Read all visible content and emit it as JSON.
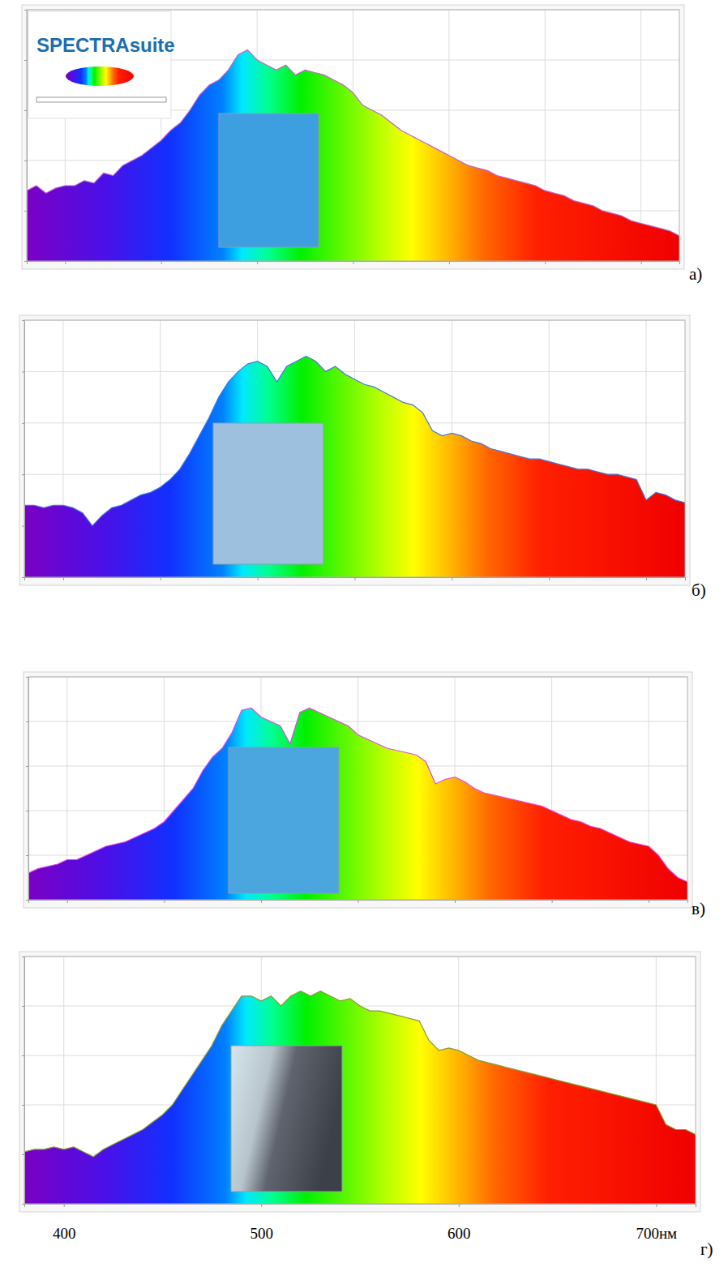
{
  "chart_data": [
    {
      "type": "area",
      "title": "а)",
      "color": "#c266c8",
      "annotations": [
        {
          "text": "SPECTRAsuite"
        }
      ],
      "x": [
        380,
        385,
        390,
        395,
        400,
        405,
        410,
        415,
        420,
        425,
        430,
        435,
        440,
        445,
        450,
        455,
        460,
        465,
        470,
        475,
        480,
        485,
        490,
        495,
        500,
        505,
        510,
        515,
        520,
        525,
        530,
        535,
        540,
        545,
        550,
        555,
        560,
        565,
        570,
        575,
        580,
        585,
        590,
        595,
        600,
        605,
        610,
        615,
        620,
        625,
        630,
        635,
        640,
        645,
        650,
        655,
        660,
        665,
        670,
        675,
        680,
        685,
        690,
        695,
        700,
        705,
        710,
        715,
        720
      ],
      "values": [
        28,
        30,
        27,
        29,
        30,
        30,
        32,
        31,
        35,
        34,
        38,
        40,
        42,
        45,
        48,
        52,
        55,
        60,
        66,
        70,
        72,
        76,
        82,
        84,
        80,
        78,
        76,
        78,
        74,
        76,
        75,
        74,
        72,
        70,
        67,
        62,
        60,
        58,
        55,
        52,
        50,
        48,
        46,
        44,
        42,
        40,
        38,
        37,
        36,
        34,
        33,
        32,
        31,
        30,
        28,
        27,
        26,
        24,
        23,
        22,
        20,
        19,
        18,
        16,
        15,
        14,
        13,
        12,
        10
      ],
      "xlim": [
        380,
        720
      ],
      "ylim": [
        0,
        100
      ],
      "xticks": [
        400,
        450,
        500,
        550,
        600,
        650,
        700
      ],
      "yticks": [
        0,
        20,
        40,
        60,
        80,
        100
      ],
      "grid": true,
      "tick_labels": false
    },
    {
      "type": "area",
      "title": "б)",
      "color": "#4a78d8",
      "x": [
        380,
        385,
        390,
        395,
        400,
        405,
        410,
        415,
        420,
        425,
        430,
        435,
        440,
        445,
        450,
        455,
        460,
        465,
        470,
        475,
        480,
        485,
        490,
        495,
        500,
        505,
        510,
        515,
        520,
        525,
        530,
        535,
        540,
        545,
        550,
        555,
        560,
        565,
        570,
        575,
        580,
        585,
        590,
        595,
        600,
        605,
        610,
        615,
        620,
        625,
        630,
        635,
        640,
        645,
        650,
        655,
        660,
        665,
        670,
        675,
        680,
        685,
        690,
        695,
        700,
        705,
        710,
        715,
        720
      ],
      "values": [
        28,
        28,
        27,
        28,
        28,
        27,
        25,
        20,
        24,
        27,
        28,
        30,
        32,
        33,
        35,
        38,
        42,
        48,
        55,
        62,
        70,
        76,
        80,
        83,
        84,
        82,
        76,
        82,
        84,
        86,
        84,
        80,
        82,
        79,
        77,
        75,
        74,
        72,
        70,
        68,
        67,
        64,
        57,
        55,
        56,
        55,
        53,
        52,
        50,
        49,
        48,
        47,
        46,
        46,
        45,
        44,
        43,
        42,
        42,
        41,
        40,
        40,
        39,
        38,
        30,
        33,
        32,
        30,
        29
      ],
      "xlim": [
        380,
        720
      ],
      "ylim": [
        0,
        100
      ],
      "xticks": [
        400,
        450,
        500,
        550,
        600,
        650,
        700
      ],
      "yticks": [
        0,
        20,
        40,
        60,
        80,
        100
      ],
      "grid": true,
      "tick_labels": false
    },
    {
      "type": "area",
      "title": "в)",
      "color": "#e64ae6",
      "x": [
        380,
        385,
        390,
        395,
        400,
        405,
        410,
        415,
        420,
        425,
        430,
        435,
        440,
        445,
        450,
        455,
        460,
        465,
        470,
        475,
        480,
        485,
        490,
        495,
        500,
        505,
        510,
        515,
        520,
        525,
        530,
        535,
        540,
        545,
        550,
        555,
        560,
        565,
        570,
        575,
        580,
        585,
        590,
        595,
        600,
        605,
        610,
        615,
        620,
        625,
        630,
        635,
        640,
        645,
        650,
        655,
        660,
        665,
        670,
        675,
        680,
        685,
        690,
        695,
        700,
        705,
        710,
        715,
        720
      ],
      "values": [
        12,
        14,
        15,
        16,
        18,
        18,
        20,
        22,
        24,
        25,
        26,
        28,
        30,
        32,
        35,
        40,
        45,
        50,
        58,
        64,
        68,
        75,
        85,
        86,
        82,
        80,
        78,
        70,
        84,
        86,
        84,
        82,
        80,
        78,
        74,
        72,
        70,
        68,
        67,
        66,
        65,
        62,
        52,
        54,
        55,
        53,
        50,
        48,
        47,
        46,
        45,
        44,
        43,
        42,
        40,
        38,
        36,
        35,
        33,
        32,
        30,
        28,
        26,
        25,
        24,
        20,
        14,
        10,
        8
      ],
      "xlim": [
        380,
        720
      ],
      "ylim": [
        0,
        100
      ],
      "xticks": [
        400,
        450,
        500,
        550,
        600,
        650,
        700
      ],
      "yticks": [
        0,
        20,
        40,
        60,
        80,
        100
      ],
      "grid": true,
      "tick_labels": false
    },
    {
      "type": "area",
      "title": "г)",
      "color": "#8a9a30",
      "x": [
        380,
        385,
        390,
        395,
        400,
        405,
        410,
        415,
        420,
        425,
        430,
        435,
        440,
        445,
        450,
        455,
        460,
        465,
        470,
        475,
        480,
        485,
        490,
        495,
        500,
        505,
        510,
        515,
        520,
        525,
        530,
        535,
        540,
        545,
        550,
        555,
        560,
        565,
        570,
        575,
        580,
        585,
        590,
        595,
        600,
        605,
        610,
        615,
        620,
        625,
        630,
        635,
        640,
        645,
        650,
        655,
        660,
        665,
        670,
        675,
        680,
        685,
        690,
        695,
        700,
        705,
        710,
        715,
        720
      ],
      "values": [
        21,
        22,
        22,
        23,
        22,
        23,
        21,
        19,
        22,
        24,
        26,
        28,
        30,
        33,
        36,
        40,
        46,
        52,
        58,
        64,
        72,
        78,
        84,
        84,
        82,
        84,
        80,
        84,
        86,
        84,
        86,
        84,
        82,
        83,
        80,
        78,
        78,
        77,
        76,
        75,
        74,
        66,
        62,
        63,
        62,
        60,
        58,
        57,
        56,
        55,
        54,
        53,
        52,
        51,
        50,
        49,
        48,
        47,
        46,
        45,
        44,
        43,
        42,
        41,
        40,
        32,
        30,
        30,
        28
      ],
      "xlim": [
        380,
        720
      ],
      "ylim": [
        0,
        100
      ],
      "xticks": [
        400,
        500,
        600,
        {
          "value": 700,
          "label": "700нм"
        }
      ],
      "yticks": [
        0,
        20,
        40,
        60,
        80,
        100
      ],
      "grid": true,
      "tick_labels": "x"
    }
  ]
}
